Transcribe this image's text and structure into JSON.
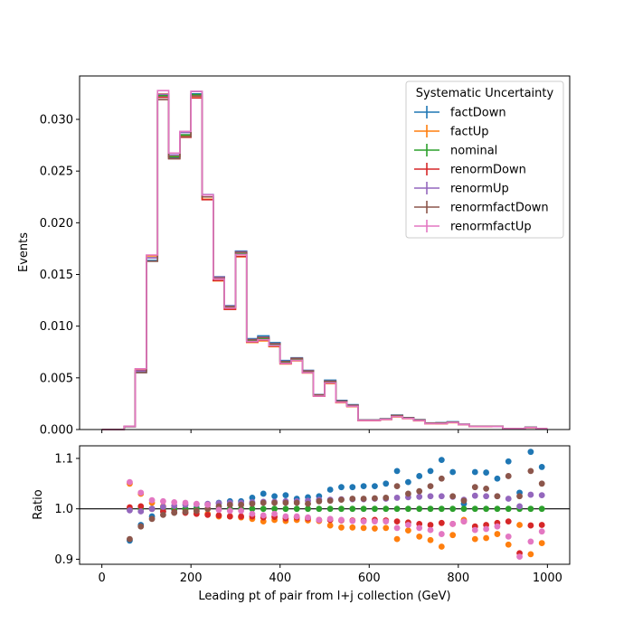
{
  "chart_data": [
    {
      "type": "line",
      "panel": "main",
      "drawstyle": "steps",
      "xlabel": "",
      "ylabel": "Events",
      "xlim": [
        -50,
        1050
      ],
      "ylim": [
        0,
        0.0342
      ],
      "yticks": [
        0.0,
        0.005,
        0.01,
        0.015,
        0.02,
        0.025,
        0.03
      ],
      "ytick_labels": [
        "0.000",
        "0.005",
        "0.010",
        "0.015",
        "0.020",
        "0.025",
        "0.030"
      ],
      "xticks": [
        0,
        200,
        400,
        600,
        800,
        1000
      ],
      "legend": {
        "title": "Systematic Uncertainty",
        "location": "upper right",
        "entries": [
          "factDown",
          "factUp",
          "nominal",
          "renormDown",
          "renormUp",
          "renormfactDown",
          "renormfactUp"
        ]
      },
      "x_edges": [
        0,
        25,
        50,
        75,
        100,
        125,
        150,
        175,
        200,
        225,
        250,
        275,
        300,
        325,
        350,
        375,
        400,
        425,
        450,
        475,
        500,
        525,
        550,
        575,
        600,
        625,
        650,
        675,
        700,
        725,
        750,
        775,
        800,
        825,
        850,
        875,
        900,
        925,
        950,
        975,
        1000
      ],
      "series": [
        {
          "name": "nominal",
          "color": "#2ca02c",
          "values": [
            0.0,
            0.0,
            0.0003,
            0.0057,
            0.0166,
            0.0323,
            0.0264,
            0.0285,
            0.0324,
            0.0225,
            0.0146,
            0.0118,
            0.017,
            0.0086,
            0.0088,
            0.0082,
            0.0065,
            0.0068,
            0.0056,
            0.0033,
            0.0046,
            0.0027,
            0.0023,
            0.0009,
            0.0009,
            0.001,
            0.0013,
            0.0011,
            0.0009,
            0.0006,
            0.0006,
            0.0007,
            0.0005,
            0.0003,
            0.0003,
            0.0003,
            0.0001,
            0.0001,
            0.0002,
            0.0001
          ]
        }
      ]
    },
    {
      "type": "scatter",
      "panel": "ratio",
      "xlabel": "Leading pt of pair from l+j collection (GeV)",
      "ylabel": "Ratio",
      "xlim": [
        -50,
        1050
      ],
      "ylim": [
        0.89,
        1.125
      ],
      "yticks": [
        0.9,
        1.0,
        1.1
      ],
      "ytick_labels": [
        "0.9",
        "1.0",
        "1.1"
      ],
      "xticks": [
        0,
        200,
        400,
        600,
        800,
        1000
      ],
      "xtick_labels": [
        "0",
        "200",
        "400",
        "600",
        "800",
        "1000"
      ],
      "reference_line": 1.0,
      "x": [
        62.5,
        87.5,
        112.5,
        137.5,
        162.5,
        187.5,
        212.5,
        237.5,
        262.5,
        287.5,
        312.5,
        337.5,
        362.5,
        387.5,
        412.5,
        437.5,
        462.5,
        487.5,
        512.5,
        537.5,
        562.5,
        587.5,
        612.5,
        637.5,
        662.5,
        687.5,
        712.5,
        737.5,
        762.5,
        787.5,
        812.5,
        837.5,
        862.5,
        887.5,
        912.5,
        937.5,
        962.5,
        987.5
      ],
      "series": [
        {
          "name": "factDown",
          "color": "#1f77b4",
          "values": [
            0.937,
            0.968,
            0.985,
            0.995,
            0.998,
            1.0,
            1.002,
            1.008,
            1.012,
            1.015,
            1.015,
            1.022,
            1.03,
            1.025,
            1.027,
            1.02,
            1.023,
            1.025,
            1.038,
            1.043,
            1.043,
            1.045,
            1.045,
            1.05,
            1.075,
            1.053,
            1.065,
            1.075,
            1.097,
            1.073,
            1.01,
            1.073,
            1.072,
            1.06,
            1.094,
            1.032,
            1.113,
            1.083
          ]
        },
        {
          "name": "factUp",
          "color": "#ff7f0e",
          "values": [
            1.05,
            1.03,
            1.012,
            1.005,
            1.002,
            0.998,
            0.995,
            0.99,
            0.985,
            0.985,
            0.983,
            0.98,
            0.975,
            0.978,
            0.976,
            0.978,
            0.977,
            0.976,
            0.967,
            0.963,
            0.963,
            0.962,
            0.961,
            0.962,
            0.94,
            0.957,
            0.945,
            0.938,
            0.925,
            0.948,
            0.978,
            0.94,
            0.942,
            0.95,
            0.929,
            0.968,
            0.91,
            0.932
          ]
        },
        {
          "name": "nominal",
          "color": "#2ca02c",
          "values": [
            1.0,
            1.0,
            1.0,
            1.0,
            1.0,
            1.0,
            1.0,
            1.0,
            1.0,
            1.0,
            1.0,
            1.0,
            1.0,
            1.0,
            1.0,
            1.0,
            1.0,
            1.0,
            1.0,
            1.0,
            1.0,
            1.0,
            1.0,
            1.0,
            1.0,
            1.0,
            1.0,
            1.0,
            1.0,
            1.0,
            1.0,
            1.0,
            1.0,
            1.0,
            1.0,
            1.0,
            1.0,
            1.0
          ]
        },
        {
          "name": "renormDown",
          "color": "#d62728",
          "values": [
            1.003,
            1.005,
            1.0,
            0.995,
            0.993,
            0.992,
            0.99,
            0.988,
            0.987,
            0.985,
            0.985,
            0.985,
            0.983,
            0.984,
            0.981,
            0.983,
            0.981,
            0.978,
            0.978,
            0.977,
            0.977,
            0.977,
            0.978,
            0.977,
            0.975,
            0.973,
            0.97,
            0.968,
            0.972,
            0.97,
            0.975,
            0.965,
            0.968,
            0.972,
            0.975,
            0.912,
            0.967,
            0.968
          ]
        },
        {
          "name": "renormUp",
          "color": "#9467bd",
          "values": [
            0.997,
            0.995,
            1.0,
            1.004,
            1.006,
            1.008,
            1.009,
            1.01,
            1.011,
            1.012,
            1.012,
            1.013,
            1.014,
            1.014,
            1.015,
            1.015,
            1.016,
            1.018,
            1.018,
            1.019,
            1.019,
            1.019,
            1.02,
            1.02,
            1.022,
            1.023,
            1.024,
            1.025,
            1.025,
            1.024,
            1.018,
            1.026,
            1.025,
            1.025,
            1.02,
            1.005,
            1.028,
            1.027
          ]
        },
        {
          "name": "renormfactDown",
          "color": "#8c564b",
          "values": [
            0.94,
            0.965,
            0.98,
            0.988,
            0.992,
            0.994,
            0.996,
            1.0,
            1.005,
            1.008,
            1.008,
            1.01,
            1.012,
            1.012,
            1.012,
            1.012,
            1.01,
            1.015,
            1.016,
            1.018,
            1.02,
            1.02,
            1.021,
            1.022,
            1.045,
            1.03,
            1.035,
            1.045,
            1.06,
            1.025,
            1.016,
            1.043,
            1.04,
            1.025,
            1.065,
            1.025,
            1.075,
            1.05
          ]
        },
        {
          "name": "renormfactUp",
          "color": "#e377c2",
          "values": [
            1.053,
            1.032,
            1.017,
            1.015,
            1.013,
            1.012,
            1.01,
            1.008,
            0.998,
            0.996,
            0.996,
            0.99,
            0.987,
            0.99,
            0.985,
            0.985,
            0.983,
            0.978,
            0.98,
            0.978,
            0.976,
            0.975,
            0.975,
            0.975,
            0.962,
            0.968,
            0.962,
            0.958,
            0.95,
            0.97,
            0.975,
            0.958,
            0.96,
            0.965,
            0.945,
            0.905,
            0.935,
            0.955
          ]
        }
      ]
    }
  ]
}
